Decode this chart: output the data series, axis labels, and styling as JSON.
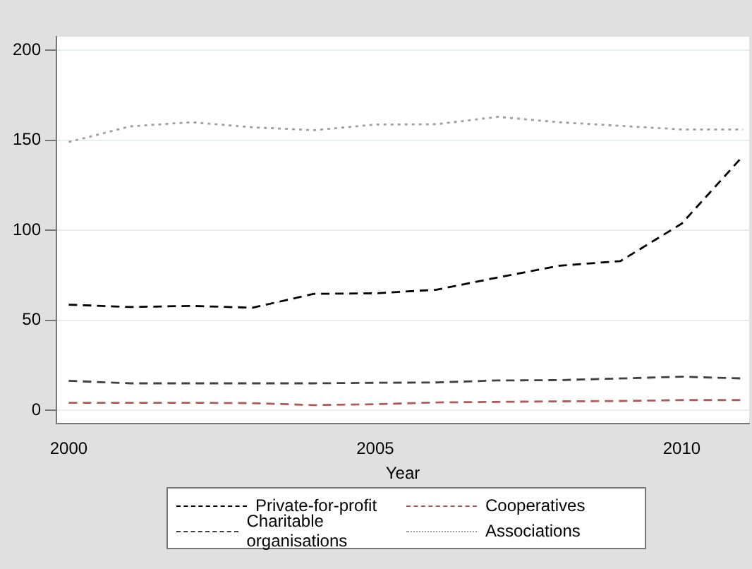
{
  "chart_data": {
    "type": "line",
    "xlabel": "Year",
    "x": [
      2000,
      2001,
      2002,
      2003,
      2004,
      2005,
      2006,
      2007,
      2008,
      2009,
      2010,
      2011
    ],
    "series": [
      {
        "name": "Private-for-profit",
        "color": "#000000",
        "line_style": "dashed",
        "values": [
          58.7,
          57.4,
          58,
          57,
          64.7,
          65,
          67,
          73.8,
          80.3,
          82.9,
          103.7,
          141.3
        ]
      },
      {
        "name": "Charitable organisations",
        "color": "#404040",
        "line_style": "dashed",
        "values": [
          16.4,
          15,
          15,
          15,
          15,
          15.3,
          15.5,
          16.6,
          16.8,
          17.7,
          18.7,
          17.7
        ]
      },
      {
        "name": "Cooperatives",
        "color": "#b05a5a",
        "line_style": "dashed",
        "values": [
          4.2,
          4.2,
          4.2,
          4,
          2.9,
          3.4,
          4.4,
          4.7,
          5,
          5.2,
          5.7,
          5.7
        ]
      },
      {
        "name": "Associations",
        "color": "#a0a0a0",
        "line_style": "dotted",
        "values": [
          149,
          157.7,
          160,
          157.2,
          155.6,
          158.7,
          158.9,
          163,
          160,
          158,
          156,
          156
        ]
      }
    ],
    "xlim": [
      1999.8,
      2011.1
    ],
    "xticks": [
      2000,
      2005,
      2010
    ],
    "ylim": [
      -7.5,
      207.5
    ],
    "yticks": [
      0,
      50,
      100,
      150,
      200
    ],
    "grid": "y",
    "legend": "bottom",
    "marker": "none"
  }
}
